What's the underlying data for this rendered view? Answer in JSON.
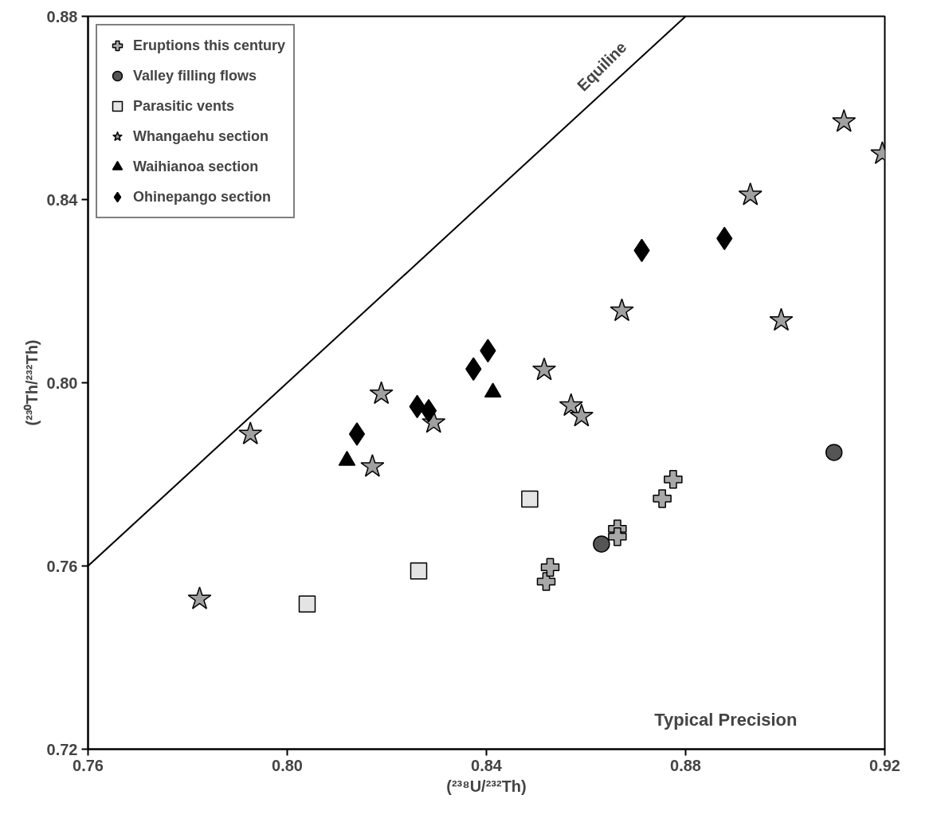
{
  "chart_data": {
    "type": "scatter",
    "xlabel": "(²³⁸U/²³²Th)",
    "ylabel": "(²³⁰Th/²³²Th)",
    "xlim": [
      0.76,
      0.92
    ],
    "ylim": [
      0.72,
      0.88
    ],
    "xticks": [
      0.76,
      {
        "value": 0.8,
        "label": "0.80"
      },
      0.84,
      0.88,
      0.92
    ],
    "yticks": [
      0.72,
      0.76,
      {
        "value": 0.8,
        "label": "0.80"
      },
      0.84,
      0.88
    ],
    "grid": false,
    "legend": "top left",
    "annotations": [
      {
        "text": "Equiline",
        "x": 0.866,
        "y": 0.866
      },
      "Typical Precision"
    ],
    "series": [
      {
        "name": "Eruptions this century",
        "marker": "cross",
        "color": "#a8a8a8",
        "x": [
          0.852,
          0.8528,
          0.8663,
          0.8663,
          0.8753,
          0.8775
        ],
        "values": [
          0.7566,
          0.7597,
          0.7681,
          0.7664,
          0.7747,
          0.7789
        ]
      },
      {
        "name": "Valley filling flows",
        "marker": "circle",
        "color": "#555555",
        "x": [
          0.8631,
          0.9098
        ],
        "values": [
          0.7648,
          0.7848
        ]
      },
      {
        "name": "Parasitic vents",
        "marker": "square",
        "color": "#e4e4e4",
        "x": [
          0.804,
          0.8264,
          0.8487
        ],
        "values": [
          0.7517,
          0.7589,
          0.7746
        ]
      },
      {
        "name": "Whangaehu section",
        "marker": "star",
        "color": "#a0a0a0",
        "x": [
          0.7824,
          0.7926,
          0.8171,
          0.8189,
          0.8294,
          0.8516,
          0.857,
          0.8591,
          0.8672,
          0.893,
          0.8992,
          0.9118,
          0.9195
        ],
        "values": [
          0.7528,
          0.7888,
          0.7817,
          0.7976,
          0.7913,
          0.8028,
          0.795,
          0.7927,
          0.8157,
          0.841,
          0.8136,
          0.857,
          0.85
        ]
      },
      {
        "name": "Waihianoa section",
        "marker": "triangle",
        "color": "#000000",
        "x": [
          0.812,
          0.8413
        ],
        "values": [
          0.783,
          0.7979
        ]
      },
      {
        "name": "Ohinepango section",
        "marker": "diamond",
        "color": "#000000",
        "x": [
          0.814,
          0.8261,
          0.8284,
          0.8374,
          0.8403,
          0.8712,
          0.8878
        ],
        "values": [
          0.7888,
          0.7948,
          0.7939,
          0.803,
          0.807,
          0.8289,
          0.8315
        ]
      },
      {
        "type": "line",
        "color": "#000000",
        "line_style": "solid",
        "x": [
          0.76,
          0.88
        ],
        "values": [
          0.76,
          0.88
        ]
      }
    ]
  }
}
